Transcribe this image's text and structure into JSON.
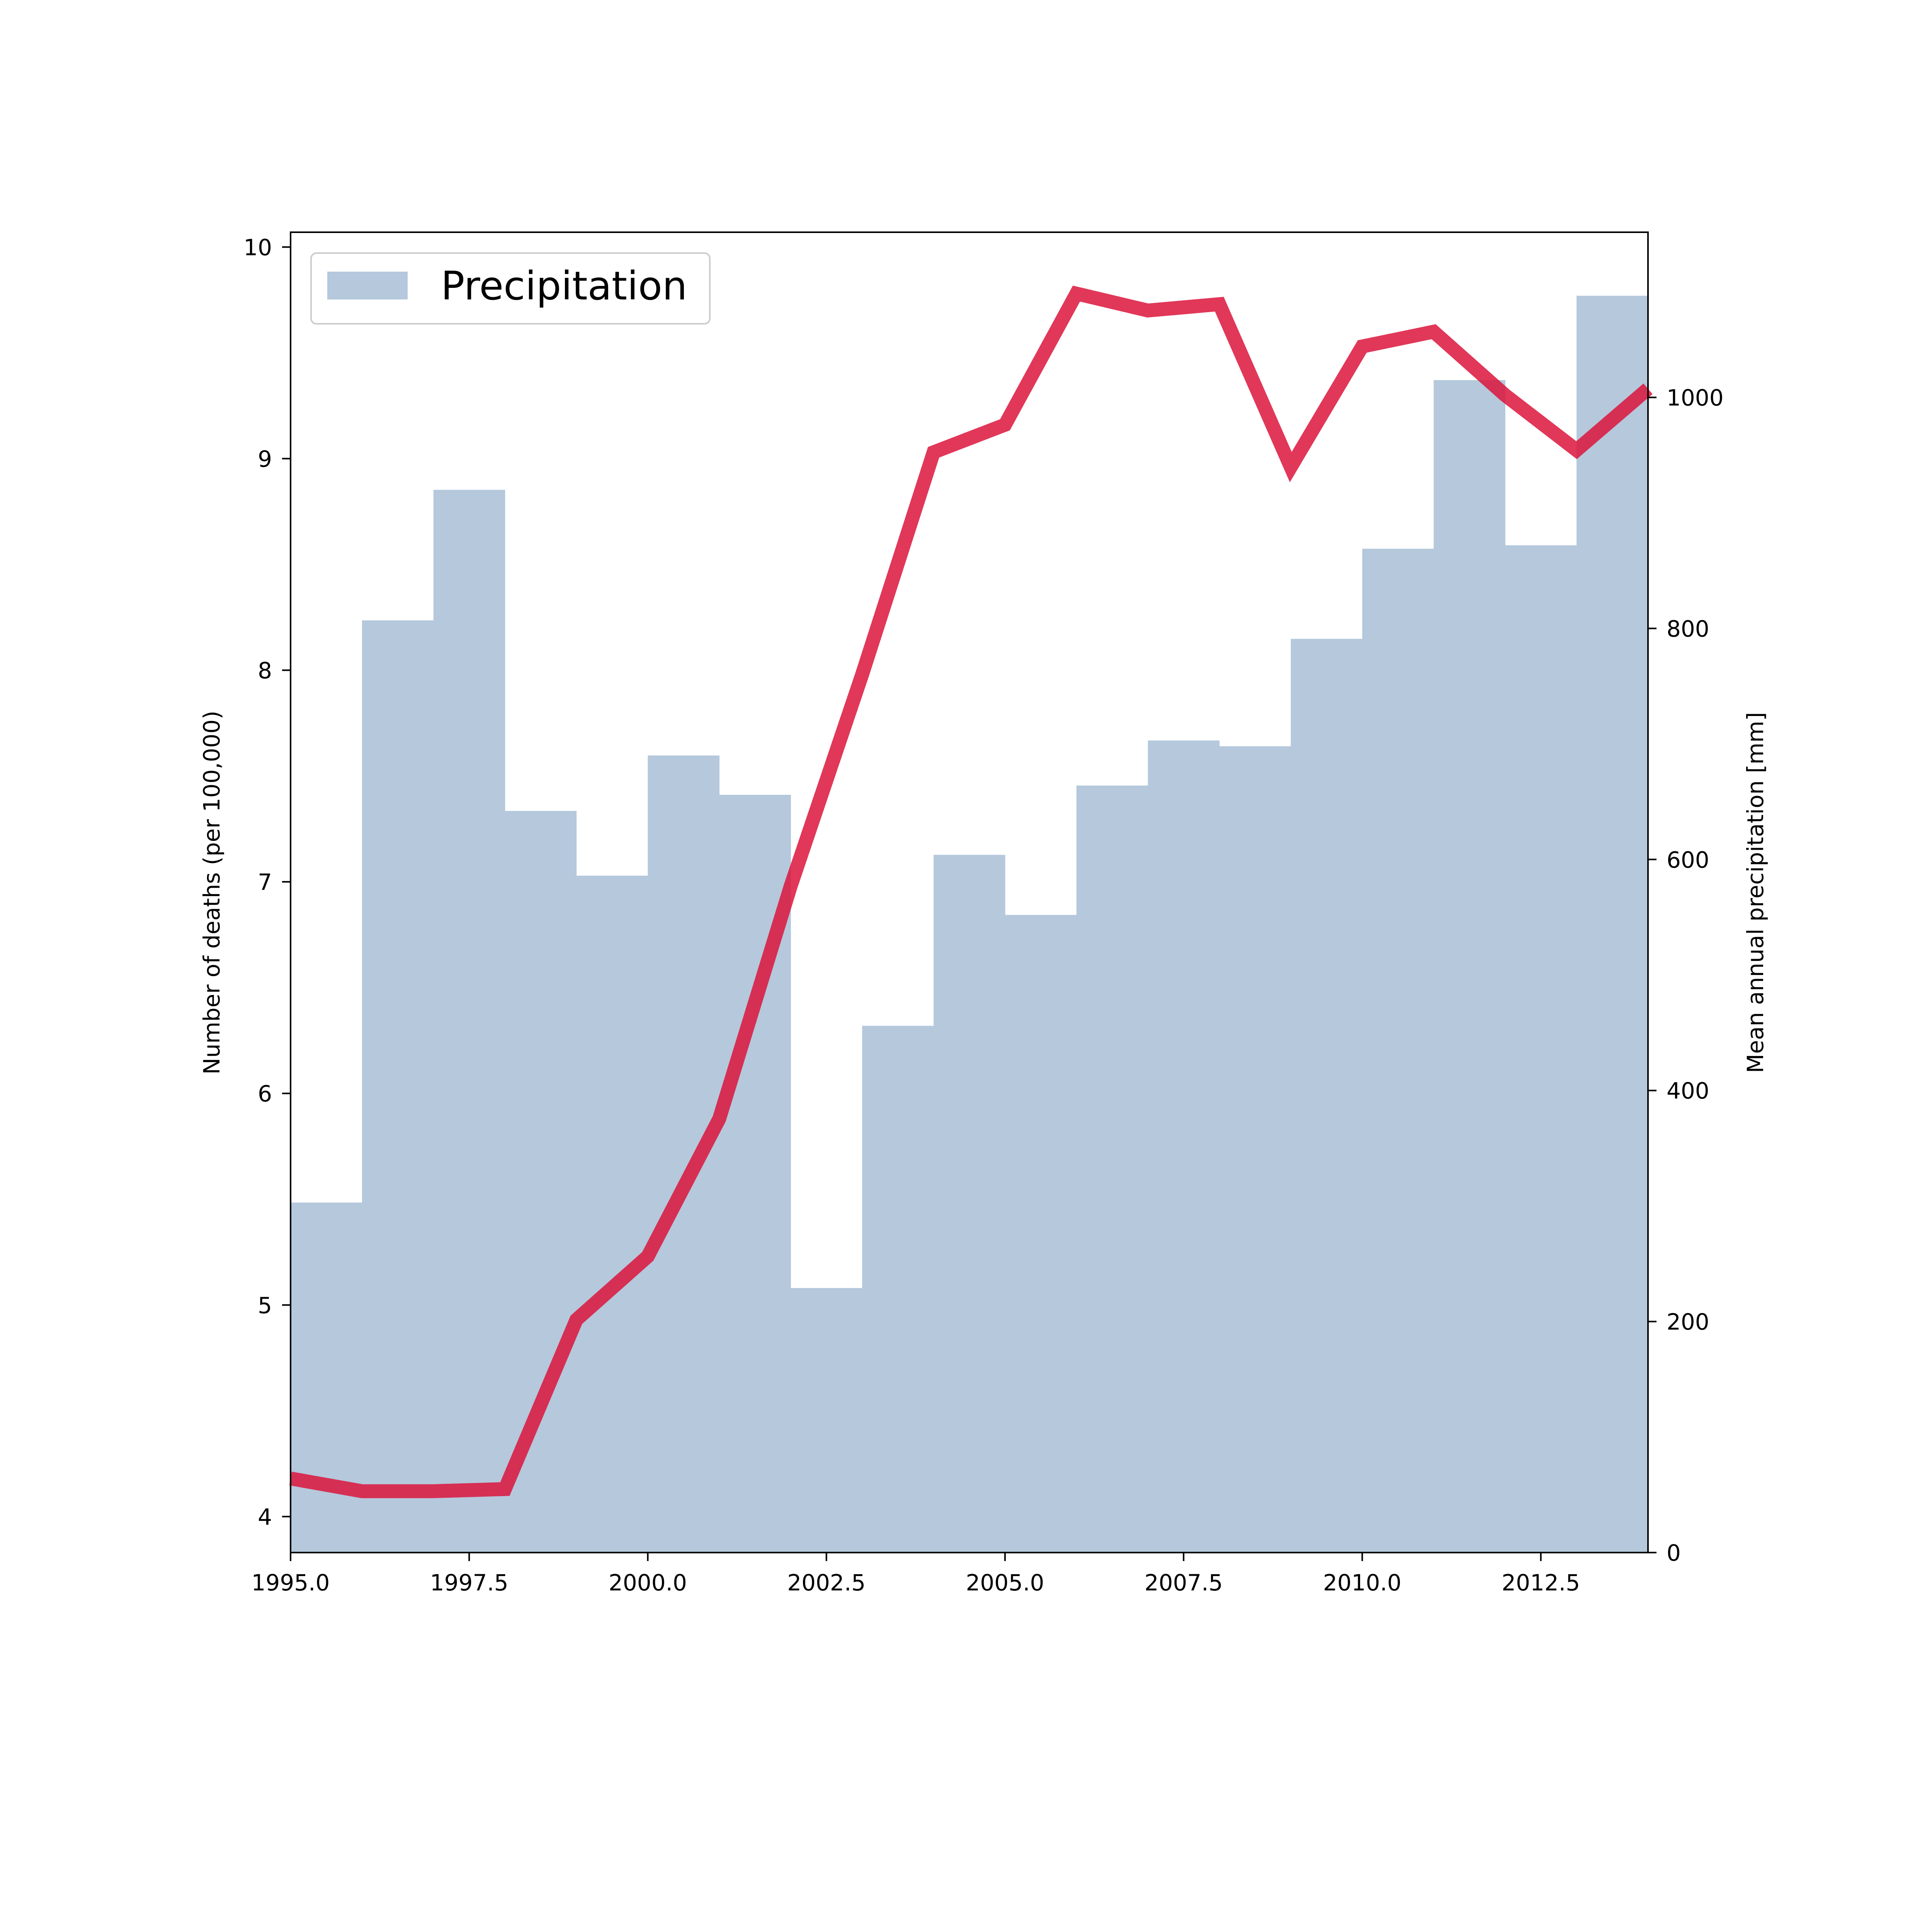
{
  "chart_data": {
    "type": "bar+line",
    "x_range": [
      1995.0,
      2014.0
    ],
    "x_ticks": [
      "1995.0",
      "1997.5",
      "2000.0",
      "2002.5",
      "2005.0",
      "2007.5",
      "2010.0",
      "2012.5"
    ],
    "left_axis": {
      "label": "Number of deaths (per 100,000)",
      "range": [
        3.83,
        10.07
      ],
      "ticks": [
        "4",
        "5",
        "6",
        "7",
        "8",
        "9",
        "10"
      ]
    },
    "right_axis": {
      "label": "Mean annual precipitation [mm]",
      "range": [
        0,
        1143
      ],
      "ticks": [
        "0",
        "200",
        "400",
        "600",
        "800",
        "1000"
      ]
    },
    "bars": {
      "name": "Precipitation",
      "color": "#b5c8dc",
      "x": [
        1995,
        1996,
        1997,
        1998,
        1999,
        2000,
        2001,
        2002,
        2003,
        2004,
        2005,
        2006,
        2007,
        2008,
        2009,
        2010,
        2011,
        2012,
        2013
      ],
      "values": [
        303,
        807,
        920,
        642,
        586,
        690,
        656,
        229,
        456,
        604,
        552,
        664,
        703,
        698,
        791,
        869,
        1015,
        872,
        1088
      ]
    },
    "line": {
      "color": "#dc143c",
      "x": [
        1995,
        1996,
        1997,
        1998,
        1999,
        2000,
        2001,
        2002,
        2003,
        2004,
        2005,
        2006,
        2007,
        2008,
        2009,
        2010,
        2011,
        2012,
        2013,
        2014
      ],
      "values": [
        4.18,
        4.12,
        4.12,
        4.13,
        4.93,
        5.23,
        5.88,
        6.98,
        7.98,
        9.03,
        9.16,
        9.78,
        9.7,
        9.73,
        8.96,
        9.53,
        9.6,
        9.3,
        9.04,
        9.33
      ]
    },
    "legend": {
      "position": "top-left",
      "entries": [
        "Precipitation"
      ]
    },
    "grid": false
  }
}
